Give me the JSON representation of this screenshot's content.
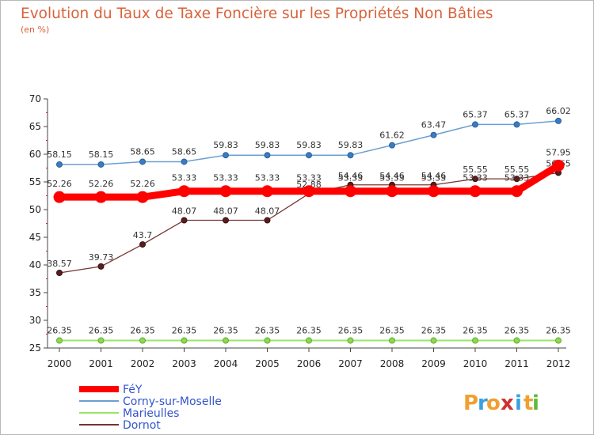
{
  "chart_data": {
    "type": "line",
    "title": "Evolution du Taux de Taxe Foncière sur les Propriétés Non Bâties",
    "unit_label": "(en %)",
    "xlabel": "",
    "ylabel": "",
    "ylim": [
      25,
      70
    ],
    "yticks": [
      25,
      30,
      35,
      40,
      45,
      50,
      55,
      60,
      65,
      70
    ],
    "categories": [
      "2000",
      "2001",
      "2002",
      "2003",
      "2004",
      "2005",
      "2006",
      "2007",
      "2008",
      "2009",
      "2010",
      "2011",
      "2012"
    ],
    "series": [
      {
        "name": "FéY",
        "color": "#ff0000",
        "values": [
          52.26,
          52.26,
          52.26,
          53.33,
          53.33,
          53.33,
          53.33,
          53.33,
          53.33,
          53.33,
          53.33,
          53.33,
          57.95
        ],
        "labels": [
          "52.26",
          "52.26",
          "52.26",
          "53.33",
          "53.33",
          "53.33",
          "53.33",
          "53.33",
          "53.33",
          "53.33",
          "53.33",
          "53.33",
          "57.95"
        ]
      },
      {
        "name": "Corny-sur-Moselle",
        "color": "#6c9fd0",
        "values": [
          58.15,
          58.15,
          58.65,
          58.65,
          59.83,
          59.83,
          59.83,
          59.83,
          61.62,
          63.47,
          65.37,
          65.37,
          66.02
        ],
        "labels": [
          "58.15",
          "58.15",
          "58.65",
          "58.65",
          "59.83",
          "59.83",
          "59.83",
          "59.83",
          "61.62",
          "63.47",
          "65.37",
          "65.37",
          "66.02"
        ]
      },
      {
        "name": "Marieulles",
        "color": "#99e566",
        "values": [
          26.35,
          26.35,
          26.35,
          26.35,
          26.35,
          26.35,
          26.35,
          26.35,
          26.35,
          26.35,
          26.35,
          26.35,
          26.35
        ],
        "labels": [
          "26.35",
          "26.35",
          "26.35",
          "26.35",
          "26.35",
          "26.35",
          "26.35",
          "26.35",
          "26.35",
          "26.35",
          "26.35",
          "26.35",
          "26.35"
        ]
      },
      {
        "name": "Dornot",
        "color": "#7a3232",
        "values": [
          38.57,
          39.73,
          43.7,
          48.07,
          48.07,
          48.07,
          52.88,
          54.46,
          54.46,
          54.46,
          55.55,
          55.55,
          56.65
        ],
        "labels": [
          "38.57",
          "39.73",
          "43.7",
          "48.07",
          "48.07",
          "48.07",
          "52.88",
          "54.46",
          "54.46",
          "54.46",
          "55.55",
          "55.55",
          "56.65"
        ]
      }
    ],
    "legend_position": "bottom-left",
    "grid": false
  },
  "logo": {
    "letters": [
      "P",
      "r",
      "o",
      "x",
      "i",
      "t",
      "i"
    ],
    "colors": [
      "#f0a030",
      "#3aa0e0",
      "#f0a030",
      "#d03030",
      "#3aa0e0",
      "#f0a030",
      "#60b840"
    ]
  }
}
